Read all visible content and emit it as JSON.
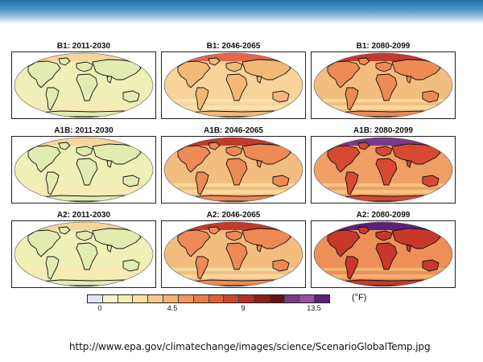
{
  "panels": [
    {
      "title": "B1: 2011-2030",
      "level": 1
    },
    {
      "title": "B1: 2046-2065",
      "level": 2
    },
    {
      "title": "B1: 2080-2099",
      "level": 3
    },
    {
      "title": "A1B: 2011-2030",
      "level": 1
    },
    {
      "title": "A1B: 2046-2065",
      "level": 3
    },
    {
      "title": "A1B: 2080-2099",
      "level": 5
    },
    {
      "title": "A2: 2011-2030",
      "level": 1
    },
    {
      "title": "A2: 2046-2065",
      "level": 3
    },
    {
      "title": "A2: 2080-2099",
      "level": 6
    }
  ],
  "legend": {
    "colors": [
      "#dfe4f2",
      "#f7f4c4",
      "#eef0b0",
      "#fbe2a0",
      "#f8c98a",
      "#f6b070",
      "#f39657",
      "#ee7a45",
      "#e45e36",
      "#d2442b",
      "#b83022",
      "#8f1d1c",
      "#69101b",
      "#7a3a8c",
      "#9a4aa8",
      "#5a2278"
    ],
    "ticks": [
      "0",
      "4.5",
      "9",
      "13.5"
    ],
    "unit": "(°F)"
  },
  "level_colors": {
    "1": {
      "ocean": "#eef0b6",
      "land": "#e2ecb0",
      "band": "#f9e9b4",
      "pole": "#f5d69a"
    },
    "2": {
      "ocean": "#f8d49a",
      "land": "#f3b878",
      "band": "#f9e3ae",
      "pole": "#e6664a"
    },
    "3": {
      "ocean": "#f4bd80",
      "land": "#ed8a55",
      "band": "#f8d99e",
      "pole": "#c23a2a"
    },
    "5": {
      "ocean": "#f0a066",
      "land": "#d64a32",
      "band": "#f6c283",
      "pole": "#7a3a8c"
    },
    "6": {
      "ocean": "#ee8e58",
      "land": "#c8382a",
      "band": "#f3b271",
      "pole": "#5a2278"
    }
  },
  "source_url": "http://www.epa.gov/climatechange/images/science/ScenarioGlobalTemp.jpg"
}
